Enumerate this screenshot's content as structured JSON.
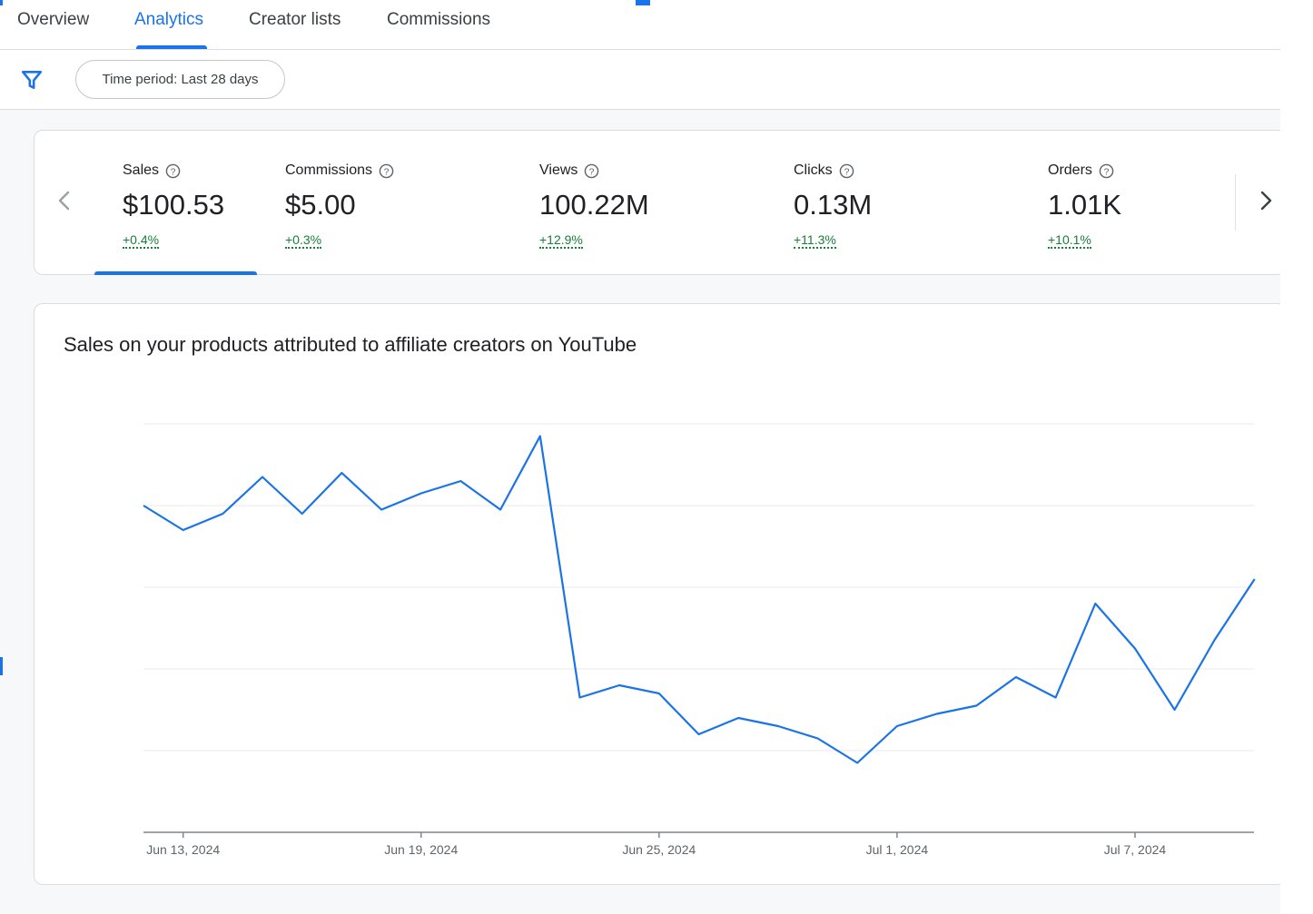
{
  "tabs": [
    {
      "label": "Overview",
      "active": false
    },
    {
      "label": "Analytics",
      "active": true
    },
    {
      "label": "Creator lists",
      "active": false
    },
    {
      "label": "Commissions",
      "active": false
    }
  ],
  "filter": {
    "icon": "filter-icon",
    "chip_label": "Time period: Last 28 days"
  },
  "metrics": [
    {
      "label": "Sales",
      "value": "$100.53",
      "change": "+0.4%",
      "selected": true
    },
    {
      "label": "Commissions",
      "value": "$5.00",
      "change": "+0.3%",
      "selected": false
    },
    {
      "label": "Views",
      "value": "100.22M",
      "change": "+12.9%",
      "selected": false
    },
    {
      "label": "Clicks",
      "value": "0.13M",
      "change": "+11.3%",
      "selected": false
    },
    {
      "label": "Orders",
      "value": "1.01K",
      "change": "+10.1%",
      "selected": false
    }
  ],
  "colors": {
    "accent": "#1a73e8",
    "positive": "#188038",
    "grid": "#e8eaed"
  },
  "chart_data": {
    "type": "line",
    "title": "Sales on your products attributed to affiliate creators on YouTube",
    "xlabel": "",
    "ylabel": "",
    "x": [
      "2024-06-12",
      "2024-06-13",
      "2024-06-14",
      "2024-06-15",
      "2024-06-16",
      "2024-06-17",
      "2024-06-18",
      "2024-06-19",
      "2024-06-20",
      "2024-06-21",
      "2024-06-22",
      "2024-06-23",
      "2024-06-24",
      "2024-06-25",
      "2024-06-26",
      "2024-06-27",
      "2024-06-28",
      "2024-06-29",
      "2024-06-30",
      "2024-07-01",
      "2024-07-02",
      "2024-07-03",
      "2024-07-04",
      "2024-07-05",
      "2024-07-06",
      "2024-07-07",
      "2024-07-08",
      "2024-07-09",
      "2024-07-10"
    ],
    "x_tick_labels": [
      "Jun 13, 2024",
      "Jun 19, 2024",
      "Jun 25, 2024",
      "Jul 1, 2024",
      "Jul 7, 2024"
    ],
    "series": [
      {
        "values": [
          3.0,
          2.7,
          2.9,
          3.35,
          2.9,
          3.4,
          2.95,
          3.15,
          3.3,
          2.95,
          3.85,
          0.65,
          0.8,
          0.7,
          0.2,
          0.4,
          0.3,
          0.15,
          -0.15,
          0.3,
          0.45,
          0.55,
          0.9,
          0.65,
          1.8,
          1.25,
          0.5,
          1.35,
          null
        ]
      }
    ],
    "ylim": [
      -1,
      4
    ],
    "grid": true,
    "legend": "none"
  }
}
